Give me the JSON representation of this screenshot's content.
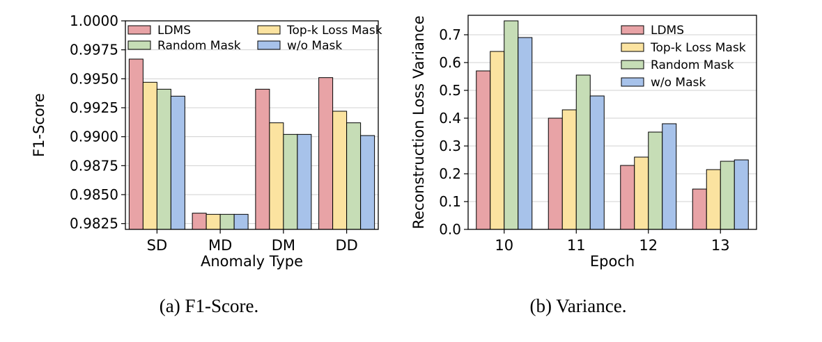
{
  "captions": [
    "(a) F1-Score.",
    "(b) Variance."
  ],
  "colors": {
    "LDMS": "#e8a3a6",
    "Top-k Loss Mask": "#fbe3a0",
    "Random Mask": "#c6ddb6",
    "w/o Mask": "#a7c2ea"
  },
  "chart_data": [
    {
      "type": "bar",
      "title": "",
      "xlabel": "Anomaly Type",
      "ylabel": "F1-Score",
      "categories": [
        "SD",
        "MD",
        "DM",
        "DD"
      ],
      "ylim": [
        0.982,
        1.0
      ],
      "yticks": [
        0.9825,
        0.985,
        0.9875,
        0.99,
        0.9925,
        0.995,
        0.9975,
        1.0
      ],
      "ytick_labels": [
        "0.9825",
        "0.9850",
        "0.9875",
        "0.9900",
        "0.9925",
        "0.9950",
        "0.9975",
        "1.0000"
      ],
      "grid": true,
      "legend_position": "top, two columns",
      "series": [
        {
          "name": "LDMS",
          "values": [
            0.9967,
            0.9834,
            0.9941,
            0.9951
          ]
        },
        {
          "name": "Top-k Loss Mask",
          "values": [
            0.9947,
            0.9833,
            0.9912,
            0.9922
          ]
        },
        {
          "name": "Random Mask",
          "values": [
            0.9941,
            0.9833,
            0.9902,
            0.9912
          ]
        },
        {
          "name": "w/o Mask",
          "values": [
            0.9935,
            0.9833,
            0.9902,
            0.9901
          ]
        }
      ]
    },
    {
      "type": "bar",
      "title": "",
      "xlabel": "Epoch",
      "ylabel": "Reconstruction Loss Variance",
      "categories": [
        "10",
        "11",
        "12",
        "13"
      ],
      "ylim": [
        0.0,
        0.77
      ],
      "yticks": [
        0.0,
        0.1,
        0.2,
        0.3,
        0.4,
        0.5,
        0.6,
        0.7
      ],
      "ytick_labels": [
        "0.0",
        "0.1",
        "0.2",
        "0.3",
        "0.4",
        "0.5",
        "0.6",
        "0.7"
      ],
      "grid": true,
      "legend_position": "top-right",
      "series": [
        {
          "name": "LDMS",
          "values": [
            0.57,
            0.4,
            0.23,
            0.145
          ]
        },
        {
          "name": "Top-k Loss Mask",
          "values": [
            0.64,
            0.43,
            0.26,
            0.215
          ]
        },
        {
          "name": "Random Mask",
          "values": [
            0.75,
            0.555,
            0.35,
            0.245
          ]
        },
        {
          "name": "w/o Mask",
          "values": [
            0.69,
            0.48,
            0.38,
            0.25
          ]
        }
      ]
    }
  ]
}
